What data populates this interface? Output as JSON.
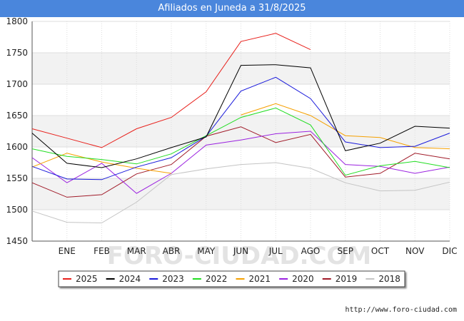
{
  "header": {
    "title": "Afiliados en Juneda a 31/8/2025"
  },
  "footer": {
    "url": "http://www.foro-ciudad.com"
  },
  "watermark": "FORO-CIUDAD.COM",
  "chart_data": {
    "type": "line",
    "title": "Afiliados en Juneda a 31/8/2025",
    "categories": [
      "",
      "ENE",
      "FEB",
      "MAR",
      "ABR",
      "MAY",
      "JUN",
      "JUL",
      "AGO",
      "SEP",
      "OCT",
      "NOV",
      "DIC"
    ],
    "ylim": [
      1450,
      1800
    ],
    "yticks": [
      1450,
      1500,
      1550,
      1600,
      1650,
      1700,
      1750,
      1800
    ],
    "grid": true,
    "legend_position": "bottom",
    "series": [
      {
        "name": "2025",
        "color": "#e8201b",
        "values": [
          1629,
          1614,
          1599,
          1629,
          1647,
          1688,
          1768,
          1781,
          1755,
          null,
          null,
          null,
          null
        ]
      },
      {
        "name": "2024",
        "color": "#000000",
        "values": [
          1622,
          1574,
          1567,
          1581,
          1599,
          1616,
          1730,
          1731,
          1726,
          1594,
          1606,
          1633,
          1630
        ]
      },
      {
        "name": "2023",
        "color": "#1a1adb",
        "values": [
          1569,
          1549,
          1548,
          1568,
          1583,
          1617,
          1689,
          1711,
          1677,
          1608,
          1599,
          1601,
          1622
        ]
      },
      {
        "name": "2022",
        "color": "#22dd22",
        "values": [
          1597,
          1585,
          1580,
          1573,
          1589,
          1618,
          1647,
          1662,
          1635,
          1555,
          1570,
          1577,
          1567
        ]
      },
      {
        "name": "2021",
        "color": "#f5a000",
        "values": [
          1568,
          1590,
          1576,
          1566,
          1558,
          null,
          1651,
          1669,
          1650,
          1618,
          1615,
          1599,
          1597
        ]
      },
      {
        "name": "2020",
        "color": "#9b22e0",
        "values": [
          1583,
          1543,
          1574,
          1526,
          1558,
          1603,
          1611,
          1621,
          1625,
          1572,
          1569,
          1558,
          1568
        ]
      },
      {
        "name": "2019",
        "color": "#a01a28",
        "values": [
          1543,
          1520,
          1524,
          1557,
          1572,
          1617,
          1632,
          1607,
          1620,
          1552,
          1558,
          1590,
          1581
        ]
      },
      {
        "name": "2018",
        "color": "#c4c4c4",
        "values": [
          1498,
          1480,
          1479,
          1512,
          1556,
          1565,
          1572,
          1575,
          1566,
          1543,
          1530,
          1531,
          1544
        ]
      }
    ]
  }
}
